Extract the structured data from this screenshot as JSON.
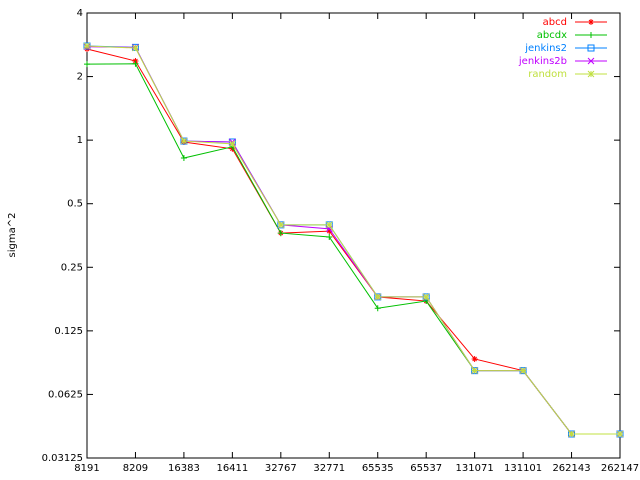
{
  "chart_data": {
    "type": "line",
    "y_label": "sigma^2",
    "categories": [
      "8191",
      "8209",
      "16383",
      "16411",
      "32767",
      "32771",
      "65535",
      "65537",
      "131071",
      "131101",
      "262143",
      "262147"
    ],
    "series": [
      {
        "name": "abcd",
        "color": "#ff0000",
        "values": [
          2.7,
          2.37,
          0.98,
          0.91,
          0.363,
          0.371,
          0.181,
          0.173,
          0.092,
          0.081,
          0.0406,
          0.0406
        ]
      },
      {
        "name": "abcdx",
        "color": "#00c000",
        "values": [
          2.29,
          2.3,
          0.823,
          0.93,
          0.363,
          0.348,
          0.16,
          0.173,
          0.081,
          0.081,
          0.0406,
          0.0406
        ]
      },
      {
        "name": "jenkins2",
        "color": "#0080ff",
        "values": [
          2.79,
          2.75,
          0.99,
          0.98,
          0.397,
          0.397,
          0.181,
          0.181,
          0.081,
          0.081,
          0.0406,
          0.0406
        ]
      },
      {
        "name": "jenkins2b",
        "color": "#c000ff",
        "values": [
          2.77,
          2.75,
          0.99,
          0.98,
          0.397,
          0.38,
          0.181,
          0.181,
          0.081,
          0.081,
          0.0406,
          0.0406
        ]
      },
      {
        "name": "random",
        "color": "#c0e040",
        "values": [
          2.79,
          2.73,
          0.99,
          0.96,
          0.397,
          0.397,
          0.181,
          0.181,
          0.081,
          0.081,
          0.0406,
          0.0406
        ]
      }
    ],
    "ylim": [
      0.03125,
      4
    ],
    "yticks": [
      0.03125,
      0.0625,
      0.125,
      0.25,
      0.5,
      1,
      2,
      4
    ],
    "log_y": true,
    "legend": "top-right"
  }
}
